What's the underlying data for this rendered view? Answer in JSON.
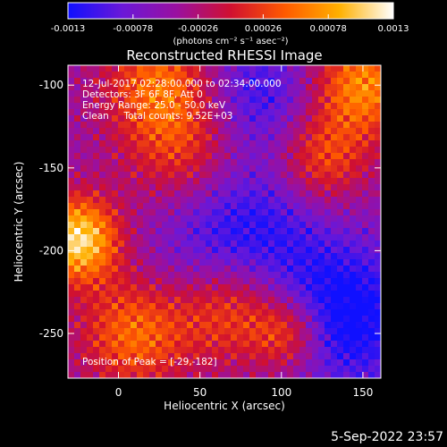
{
  "chart_data": {
    "type": "heatmap",
    "title": "Reconstructed RHESSI Image",
    "xlabel": "Heliocentric X (arcsec)",
    "ylabel": "Heliocentric Y (arcsec)",
    "xlim": [
      -31,
      161
    ],
    "ylim": [
      -277,
      -88
    ],
    "x_ticks": [
      0,
      50,
      100,
      150
    ],
    "y_ticks": [
      -100,
      -150,
      -200,
      -250
    ],
    "colorbar": {
      "unit_label": "(photons cm⁻² s⁻¹ asec⁻²)",
      "tick_labels": [
        "-0.0013",
        "-0.00078",
        "-0.00026",
        "0.00026",
        "0.00078",
        "0.0013"
      ],
      "range": [
        -0.0013,
        0.0013
      ],
      "colors": [
        "#1010ff",
        "#6a18d8",
        "#9a10a0",
        "#d01030",
        "#ff5a00",
        "#ffb000",
        "#ffffff"
      ]
    },
    "annotations": [
      "12-Jul-2017 02:28:00.000 to 02:34:00.000",
      "Detectors: 3F 6F 8F, Att 0",
      "Energy Range: 25.0 - 50.0 keV",
      "Clean     Total counts: 9.52E+03"
    ],
    "peak_label": "Position of Peak = [-29,-182]",
    "peak_position": [
      -29,
      -182
    ],
    "emission_sources": [
      {
        "x": -25,
        "y": -193,
        "sigma": 18,
        "amplitude": 1.0
      },
      {
        "x": 10,
        "y": -250,
        "sigma": 24,
        "amplitude": 0.6
      },
      {
        "x": 70,
        "y": -234,
        "sigma": 24,
        "amplitude": 0.65
      },
      {
        "x": 105,
        "y": -250,
        "sigma": 16,
        "amplitude": 0.55
      },
      {
        "x": 150,
        "y": -100,
        "sigma": 22,
        "amplitude": 0.7
      },
      {
        "x": 25,
        "y": -98,
        "sigma": 24,
        "amplitude": 0.55
      },
      {
        "x": 40,
        "y": -140,
        "sigma": 26,
        "amplitude": 0.45
      },
      {
        "x": 125,
        "y": -145,
        "sigma": 20,
        "amplitude": 0.5
      }
    ],
    "negative_regions": [
      {
        "x": 75,
        "y": -195,
        "sigma": 35,
        "amplitude": 0.55
      },
      {
        "x": 140,
        "y": -240,
        "sigma": 30,
        "amplitude": 0.6
      },
      {
        "x": 85,
        "y": -105,
        "sigma": 25,
        "amplitude": 0.4
      }
    ]
  },
  "footer": {
    "timestamp": "5-Sep-2022 23:57"
  }
}
